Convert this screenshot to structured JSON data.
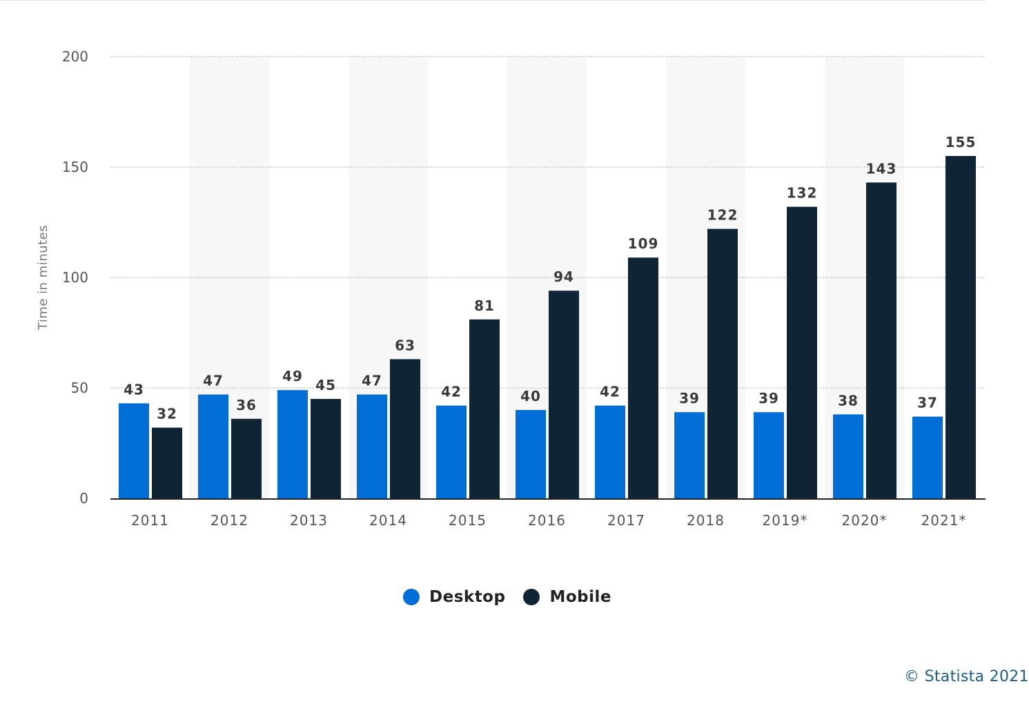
{
  "chart_data": {
    "type": "bar",
    "categories": [
      "2011",
      "2012",
      "2013",
      "2014",
      "2015",
      "2016",
      "2017",
      "2018",
      "2019*",
      "2020*",
      "2021*"
    ],
    "series": [
      {
        "name": "Desktop",
        "color": "#006ed6",
        "values": [
          43,
          47,
          49,
          47,
          42,
          40,
          42,
          39,
          39,
          38,
          37
        ]
      },
      {
        "name": "Mobile",
        "color": "#0f2434",
        "values": [
          32,
          36,
          45,
          63,
          81,
          94,
          109,
          122,
          132,
          143,
          155
        ]
      }
    ],
    "ylabel": "Time in minutes",
    "xlabel": "",
    "ylim": [
      0,
      200
    ],
    "yticks": [
      0,
      50,
      100,
      150,
      200
    ],
    "grid": true,
    "legend_position": "bottom-center",
    "data_labels": true
  },
  "credit": "© Statista 2021"
}
